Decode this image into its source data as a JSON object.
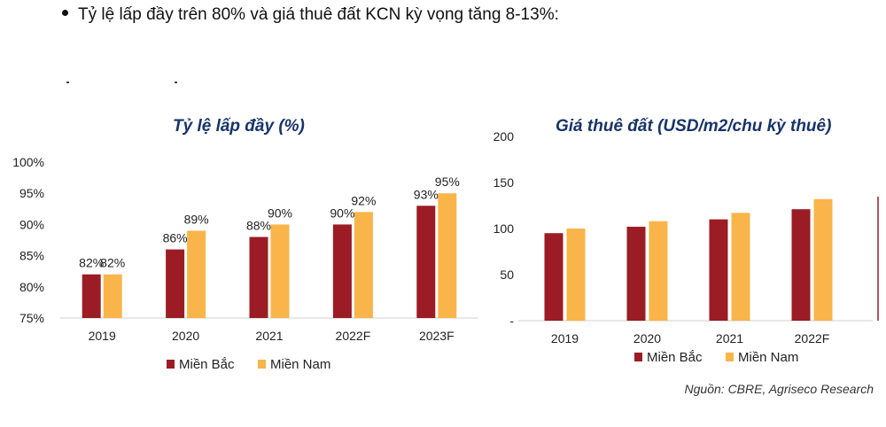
{
  "heading": {
    "bullet_text": "Tỷ lệ lấp đầy trên 80% và giá thuê đất KCN kỳ vọng tăng 8-13%:"
  },
  "source": "Nguồn: CBRE, Agriseco Research",
  "colors": {
    "north": "#9b1c24",
    "south": "#f9b549",
    "title": "#17336b",
    "axis": "#d0d0d0"
  },
  "chart_data": [
    {
      "type": "bar",
      "title": "Tỷ lệ lấp đầy (%)",
      "categories": [
        "2019",
        "2020",
        "2021",
        "2022F",
        "2023F"
      ],
      "series": [
        {
          "name": "Miền Bắc",
          "values": [
            82,
            86,
            88,
            90,
            93
          ],
          "labels": [
            "82%",
            "86%",
            "88%",
            "90%",
            "93%"
          ]
        },
        {
          "name": "Miền Nam",
          "values": [
            82,
            89,
            90,
            92,
            95
          ],
          "labels": [
            "82%",
            "89%",
            "90%",
            "92%",
            "95%"
          ]
        }
      ],
      "ylim": [
        75,
        100
      ],
      "yticks": [
        75,
        80,
        85,
        90,
        95,
        100
      ],
      "ytick_labels": [
        "75%",
        "80%",
        "85%",
        "90%",
        "95%",
        "100%"
      ],
      "legend": "bottom",
      "grid": false
    },
    {
      "type": "bar",
      "title": "Giá thuê đất (USD/m2/chu kỳ thuê)",
      "categories": [
        "2019",
        "2020",
        "2021",
        "2022F"
      ],
      "series": [
        {
          "name": "Miền Bắc",
          "values": [
            95,
            102,
            110,
            121
          ]
        },
        {
          "name": "Miền Nam",
          "values": [
            100,
            108,
            117,
            132
          ]
        }
      ],
      "ylim": [
        0,
        200
      ],
      "yticks": [
        0,
        50,
        100,
        150,
        200
      ],
      "ytick_labels": [
        "-",
        "50",
        "100",
        "150",
        "200"
      ],
      "legend": "bottom",
      "grid": false
    }
  ]
}
